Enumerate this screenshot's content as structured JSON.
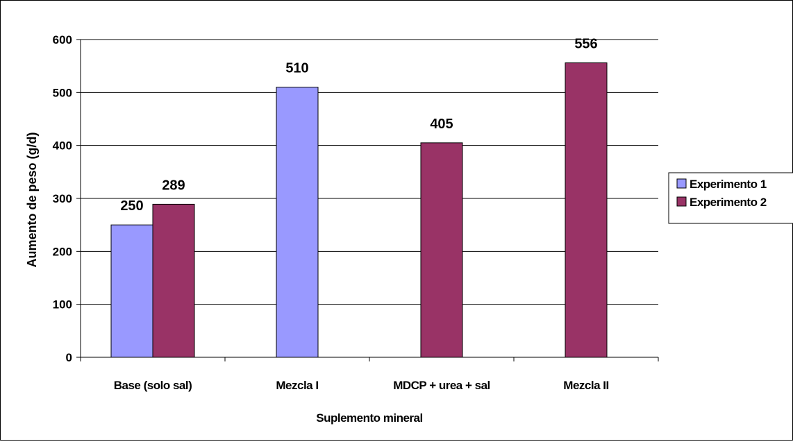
{
  "chart_data": {
    "type": "bar",
    "categories": [
      "Base (solo sal)",
      "Mezcla I",
      "MDCP + urea + sal",
      "Mezcla II"
    ],
    "series": [
      {
        "name": "Experimento 1",
        "color": "#9999FF",
        "values": [
          250,
          510,
          null,
          null
        ]
      },
      {
        "name": "Experimento 2",
        "color": "#993366",
        "values": [
          289,
          null,
          405,
          556
        ]
      }
    ],
    "xlabel": "Suplemento mineral",
    "ylabel": "Aumento de peso (g/d)",
    "ylim": [
      0,
      600
    ],
    "yticks": [
      0,
      100,
      200,
      300,
      400,
      500,
      600
    ],
    "grid": true,
    "legend_position": "right",
    "data_labels": true
  }
}
